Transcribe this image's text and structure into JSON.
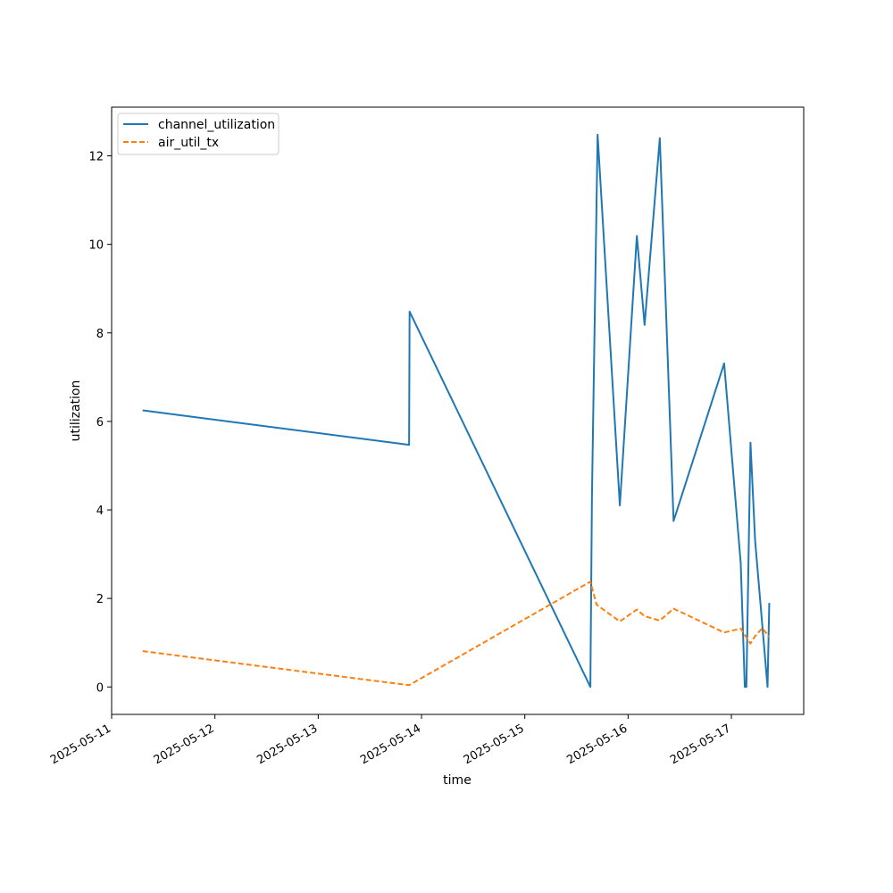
{
  "chart_data": {
    "type": "line",
    "xlabel": "time",
    "ylabel": "utilization",
    "x_ticks": [
      "2025-05-11",
      "2025-05-12",
      "2025-05-13",
      "2025-05-14",
      "2025-05-15",
      "2025-05-16",
      "2025-05-17"
    ],
    "y_ticks": [
      0,
      2,
      4,
      6,
      8,
      10,
      12
    ],
    "xlim": [
      "2025-05-11T00:00",
      "2025-05-17T16:48"
    ],
    "ylim": [
      -0.62,
      13.1
    ],
    "grid": false,
    "legend_position": "upper left",
    "series": [
      {
        "name": "channel_utilization",
        "color": "#1f77b4",
        "style": "solid",
        "points": [
          [
            "2025-05-11T07:12",
            6.25
          ],
          [
            "2025-05-13T21:07",
            5.47
          ],
          [
            "2025-05-13T21:14",
            8.48
          ],
          [
            "2025-05-15T15:14",
            0.0
          ],
          [
            "2025-05-15T15:36",
            4.3
          ],
          [
            "2025-05-15T16:55",
            12.48
          ],
          [
            "2025-05-15T22:05",
            4.1
          ],
          [
            "2025-05-16T02:02",
            10.19
          ],
          [
            "2025-05-16T03:50",
            8.18
          ],
          [
            "2025-05-16T07:22",
            12.4
          ],
          [
            "2025-05-16T10:34",
            3.75
          ],
          [
            "2025-05-16T22:19",
            7.31
          ],
          [
            "2025-05-17T02:10",
            2.8
          ],
          [
            "2025-05-17T03:07",
            0.0
          ],
          [
            "2025-05-17T03:29",
            0.0
          ],
          [
            "2025-05-17T04:26",
            5.52
          ],
          [
            "2025-05-17T05:31",
            3.3
          ],
          [
            "2025-05-17T08:24",
            0.0
          ],
          [
            "2025-05-17T08:48",
            1.9
          ]
        ]
      },
      {
        "name": "air_util_tx",
        "color": "#ff7f0e",
        "style": "dashed",
        "points": [
          [
            "2025-05-11T07:12",
            0.81
          ],
          [
            "2025-05-13T21:07",
            0.04
          ],
          [
            "2025-05-15T15:14",
            2.38
          ],
          [
            "2025-05-15T16:41",
            1.86
          ],
          [
            "2025-05-15T22:05",
            1.48
          ],
          [
            "2025-05-16T02:02",
            1.75
          ],
          [
            "2025-05-16T03:50",
            1.6
          ],
          [
            "2025-05-16T07:22",
            1.5
          ],
          [
            "2025-05-16T10:34",
            1.77
          ],
          [
            "2025-05-16T22:19",
            1.23
          ],
          [
            "2025-05-17T02:10",
            1.32
          ],
          [
            "2025-05-17T04:26",
            0.98
          ],
          [
            "2025-05-17T05:31",
            1.15
          ],
          [
            "2025-05-17T07:12",
            1.33
          ],
          [
            "2025-05-17T08:48",
            1.13
          ]
        ]
      }
    ]
  }
}
